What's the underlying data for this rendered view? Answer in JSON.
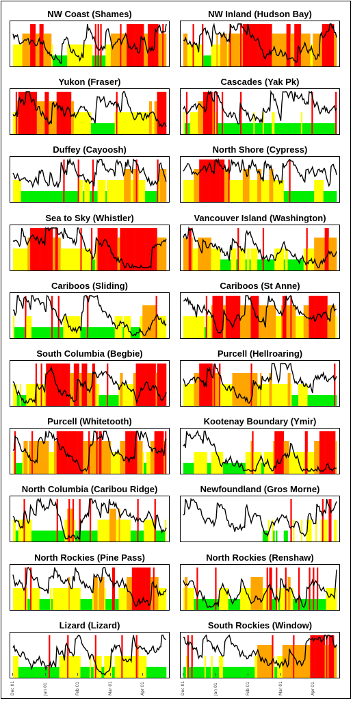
{
  "colors": {
    "low": "#00ee00",
    "moderate": "#ffff00",
    "considerable": "#ffa500",
    "high": "#ff0000",
    "line": "#000000",
    "frame": "#000000"
  },
  "x_tick_labels": [
    "Dec 01",
    "Jan 01",
    "Feb 01",
    "Mar 01",
    "Apr 01"
  ],
  "chart_data": [
    {
      "type": "bar",
      "title": "NW Coast (Shames)"
    },
    {
      "type": "bar",
      "title": "NW Inland (Hudson Bay)"
    },
    {
      "type": "bar",
      "title": "Yukon (Fraser)"
    },
    {
      "type": "bar",
      "title": "Cascades (Yak Pk)"
    },
    {
      "type": "bar",
      "title": "Duffey (Cayoosh)"
    },
    {
      "type": "bar",
      "title": "North Shore (Cypress)"
    },
    {
      "type": "bar",
      "title": "Sea to Sky (Whistler)"
    },
    {
      "type": "bar",
      "title": "Vancouver Island (Washington)"
    },
    {
      "type": "bar",
      "title": "Cariboos (Sliding)"
    },
    {
      "type": "bar",
      "title": "Cariboos (St Anne)"
    },
    {
      "type": "bar",
      "title": "South Columbia (Begbie)"
    },
    {
      "type": "bar",
      "title": "Purcell (Hellroaring)"
    },
    {
      "type": "bar",
      "title": "Purcell (Whitetooth)"
    },
    {
      "type": "bar",
      "title": "Kootenay Boundary (Ymir)"
    },
    {
      "type": "bar",
      "title": "North Columbia (Caribou Ridge)"
    },
    {
      "type": "bar",
      "title": "Newfoundland (Gros Morne)"
    },
    {
      "type": "bar",
      "title": "North Rockies (Pine Pass)"
    },
    {
      "type": "bar",
      "title": "North Rockies (Renshaw)"
    },
    {
      "type": "bar",
      "title": "Lizard (Lizard)"
    },
    {
      "type": "bar",
      "title": "South Rockies (Window)"
    }
  ]
}
